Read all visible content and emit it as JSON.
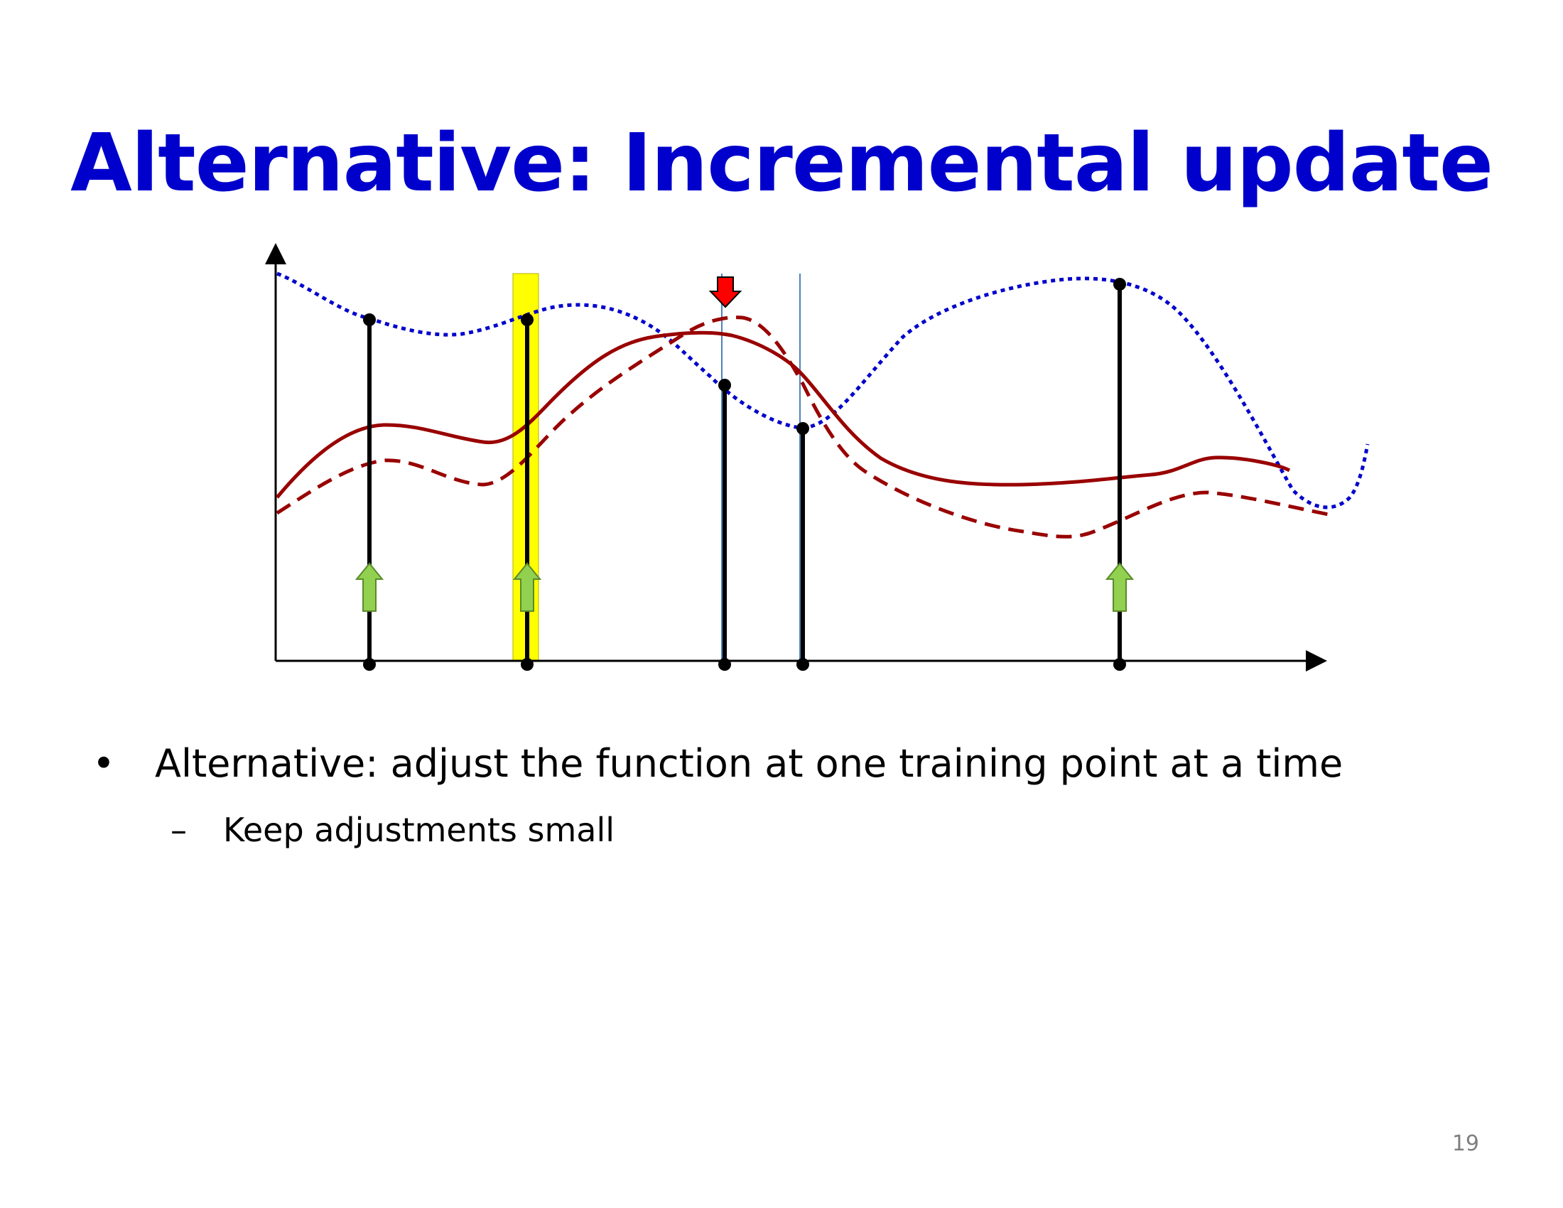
{
  "slide": {
    "title": "Alternative: Incremental update",
    "bullets": [
      {
        "marker": "•",
        "text": "Alternative: adjust the function at one training point at a time"
      },
      {
        "marker": "–",
        "text": "Keep adjustments small"
      }
    ],
    "page_number": "19"
  },
  "diagram": {
    "colors": {
      "axis": "#000000",
      "target_curve": "#0000cc",
      "model_curve": "#990000",
      "highlight": "#ffff00",
      "up_arrow": "#92d050",
      "down_arrow": "#ff0000",
      "guide_line": "#4f81bd"
    },
    "training_points": [
      {
        "id": 1,
        "adjustment": "up"
      },
      {
        "id": 2,
        "adjustment": "up",
        "highlighted": true
      },
      {
        "id": 3,
        "adjustment": "down"
      },
      {
        "id": 4,
        "adjustment": "none"
      },
      {
        "id": 5,
        "adjustment": "up"
      }
    ],
    "curves": [
      {
        "id": "target",
        "style": "dotted"
      },
      {
        "id": "current",
        "style": "solid"
      },
      {
        "id": "updated",
        "style": "dashed"
      }
    ]
  }
}
